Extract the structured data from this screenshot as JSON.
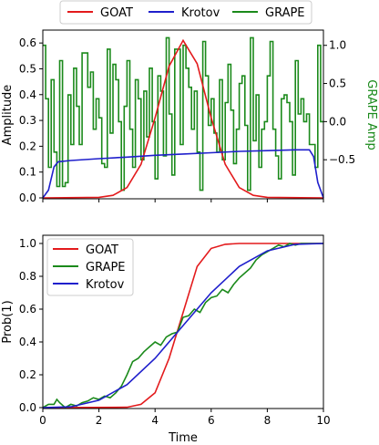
{
  "colors": {
    "goat": "#e31a1c",
    "krotov": "#1f1fcc",
    "grape": "#1b8a1b",
    "grape_axis": "#1b8a1b"
  },
  "chart_data": [
    {
      "type": "line",
      "id": "pulses",
      "xlim": [
        0,
        10
      ],
      "ylim": [
        0,
        0.65
      ],
      "ylabel": "Amplitude",
      "yticks": [
        0.0,
        0.1,
        0.2,
        0.3,
        0.4,
        0.5,
        0.6
      ],
      "ytick_labels": [
        "0.0",
        "0.1",
        "0.2",
        "0.3",
        "0.4",
        "0.5",
        "0.6"
      ],
      "y2lim": [
        -1.0,
        1.2
      ],
      "y2label": "GRAPE Amp",
      "y2ticks": [
        -0.5,
        0.0,
        0.5,
        1.0
      ],
      "y2tick_labels": [
        "−0.5",
        "0.0",
        "0.5",
        "1.0"
      ],
      "legend": {
        "placement": "top-center-outside",
        "entries": [
          "GOAT",
          "Krotov",
          "GRAPE"
        ]
      },
      "series": [
        {
          "name": "GOAT",
          "axis": "left",
          "x": [
            0,
            2,
            2.5,
            3,
            3.5,
            4,
            4.5,
            5,
            5.5,
            6,
            6.5,
            7,
            7.5,
            8,
            10
          ],
          "values": [
            0,
            0.002,
            0.01,
            0.04,
            0.13,
            0.31,
            0.51,
            0.61,
            0.52,
            0.31,
            0.13,
            0.04,
            0.01,
            0.002,
            0
          ]
        },
        {
          "name": "Krotov",
          "axis": "left",
          "x": [
            0,
            0.2,
            0.4,
            0.55,
            1,
            2,
            3,
            4,
            5,
            6,
            7,
            8,
            9,
            9.5,
            9.65,
            9.8,
            10
          ],
          "values": [
            0,
            0.03,
            0.12,
            0.14,
            0.145,
            0.152,
            0.158,
            0.165,
            0.17,
            0.175,
            0.18,
            0.183,
            0.186,
            0.186,
            0.16,
            0.06,
            0
          ]
        },
        {
          "name": "GRAPE",
          "axis": "right",
          "type": "step",
          "x": [
            0,
            0.1,
            0.2,
            0.3,
            0.4,
            0.5,
            0.6,
            0.7,
            0.8,
            0.9,
            1.0,
            1.1,
            1.2,
            1.3,
            1.4,
            1.5,
            1.6,
            1.7,
            1.8,
            1.9,
            2.0,
            2.1,
            2.2,
            2.3,
            2.4,
            2.5,
            2.6,
            2.7,
            2.8,
            2.9,
            3.0,
            3.1,
            3.2,
            3.3,
            3.4,
            3.5,
            3.6,
            3.7,
            3.8,
            3.9,
            4.0,
            4.1,
            4.2,
            4.3,
            4.4,
            4.5,
            4.6,
            4.7,
            4.8,
            4.9,
            5.0,
            5.1,
            5.2,
            5.3,
            5.4,
            5.5,
            5.6,
            5.7,
            5.8,
            5.9,
            6.0,
            6.1,
            6.2,
            6.3,
            6.4,
            6.5,
            6.6,
            6.7,
            6.8,
            6.9,
            7.0,
            7.1,
            7.2,
            7.3,
            7.4,
            7.5,
            7.6,
            7.7,
            7.8,
            7.9,
            8.0,
            8.1,
            8.2,
            8.3,
            8.4,
            8.5,
            8.6,
            8.7,
            8.8,
            8.9,
            9.0,
            9.1,
            9.2,
            9.3,
            9.4,
            9.5,
            9.6,
            9.7,
            9.8,
            9.9
          ],
          "values": [
            1.0,
            0.3,
            -0.6,
            0.55,
            -0.4,
            -0.85,
            0.8,
            -0.85,
            -0.8,
            0.35,
            -0.3,
            0.7,
            0.2,
            -0.3,
            0.9,
            0.9,
            0.45,
            0.65,
            -0.1,
            0.3,
            0.05,
            -0.55,
            -0.6,
            0.95,
            -0.15,
            0.75,
            0.55,
            0.0,
            -0.9,
            0.2,
            0.8,
            -0.1,
            -0.6,
            0.55,
            0.3,
            -0.5,
            0.4,
            -0.2,
            0.7,
            0.0,
            -0.75,
            0.6,
            0.4,
            -0.45,
            1.1,
            0.1,
            -0.7,
            0.95,
            0.95,
            -0.3,
            1.0,
            0.7,
            0.45,
            -0.1,
            0.4,
            -0.4,
            -0.9,
            1.05,
            0.6,
            -0.05,
            0.3,
            -0.15,
            -0.4,
            0.55,
            -0.5,
            0.25,
            0.75,
            0.15,
            -0.55,
            -0.1,
            0.5,
            0.6,
            -0.05,
            -0.9,
            1.1,
            -0.25,
            0.35,
            -0.6,
            -0.1,
            0.0,
            0.6,
            1.05,
            -0.1,
            -0.45,
            -0.75,
            0.3,
            0.35,
            0.25,
            0.0,
            -0.7,
            0.8,
            0.1,
            0.3,
            0.0,
            0.1,
            -0.3,
            -0.3,
            -0.6,
            1.0,
            0.0
          ]
        }
      ]
    },
    {
      "type": "line",
      "id": "population",
      "xlim": [
        0,
        10
      ],
      "ylim": [
        0,
        1.05
      ],
      "xlabel": "Time",
      "ylabel": "Prob(1)",
      "xticks": [
        0,
        2,
        4,
        6,
        8,
        10
      ],
      "xtick_labels": [
        "0",
        "2",
        "4",
        "6",
        "8",
        "10"
      ],
      "yticks": [
        0.0,
        0.2,
        0.4,
        0.6,
        0.8,
        1.0
      ],
      "ytick_labels": [
        "0.0",
        "0.2",
        "0.4",
        "0.6",
        "0.8",
        "1.0"
      ],
      "legend": {
        "placement": "top-left",
        "entries": [
          "GOAT",
          "GRAPE",
          "Krotov"
        ]
      },
      "series": [
        {
          "name": "GOAT",
          "x": [
            0,
            3,
            3.5,
            4,
            4.5,
            5,
            5.5,
            6,
            6.5,
            7,
            10
          ],
          "values": [
            0,
            0.002,
            0.02,
            0.09,
            0.3,
            0.58,
            0.86,
            0.97,
            0.995,
            1.0,
            1.0
          ]
        },
        {
          "name": "GRAPE",
          "x": [
            0,
            0.2,
            0.4,
            0.5,
            0.6,
            0.8,
            1.0,
            1.2,
            1.4,
            1.6,
            1.8,
            2.0,
            2.2,
            2.4,
            2.6,
            2.8,
            3.0,
            3.2,
            3.4,
            3.6,
            3.8,
            4.0,
            4.2,
            4.4,
            4.6,
            4.8,
            5.0,
            5.2,
            5.4,
            5.6,
            5.8,
            6.0,
            6.2,
            6.4,
            6.6,
            6.8,
            7.0,
            7.2,
            7.4,
            7.6,
            7.8,
            8.0,
            8.2,
            8.4,
            8.6,
            8.8,
            9.0,
            9.2,
            9.4,
            9.6,
            9.8,
            10.0
          ],
          "values": [
            0,
            0.02,
            0.02,
            0.05,
            0.03,
            0.0,
            0.02,
            0.01,
            0.03,
            0.04,
            0.06,
            0.05,
            0.07,
            0.06,
            0.09,
            0.13,
            0.2,
            0.28,
            0.3,
            0.34,
            0.37,
            0.4,
            0.38,
            0.43,
            0.45,
            0.46,
            0.55,
            0.56,
            0.6,
            0.58,
            0.64,
            0.67,
            0.68,
            0.72,
            0.7,
            0.75,
            0.79,
            0.82,
            0.85,
            0.9,
            0.93,
            0.95,
            0.97,
            0.99,
            0.98,
            1.0,
            0.99,
            1.0,
            1.0,
            1.0,
            1.0,
            1.0
          ]
        },
        {
          "name": "Krotov",
          "x": [
            0,
            1,
            2,
            3,
            4,
            5,
            6,
            7,
            8,
            9,
            10
          ],
          "values": [
            0,
            0.005,
            0.045,
            0.14,
            0.3,
            0.5,
            0.7,
            0.86,
            0.955,
            0.995,
            1.0
          ]
        }
      ]
    }
  ]
}
